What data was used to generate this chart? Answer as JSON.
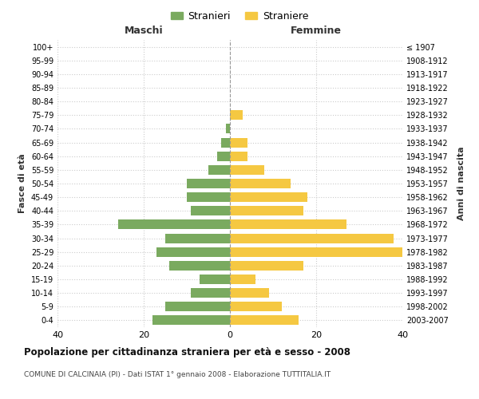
{
  "age_groups": [
    "100+",
    "95-99",
    "90-94",
    "85-89",
    "80-84",
    "75-79",
    "70-74",
    "65-69",
    "60-64",
    "55-59",
    "50-54",
    "45-49",
    "40-44",
    "35-39",
    "30-34",
    "25-29",
    "20-24",
    "15-19",
    "10-14",
    "5-9",
    "0-4"
  ],
  "birth_years": [
    "≤ 1907",
    "1908-1912",
    "1913-1917",
    "1918-1922",
    "1923-1927",
    "1928-1932",
    "1933-1937",
    "1938-1942",
    "1943-1947",
    "1948-1952",
    "1953-1957",
    "1958-1962",
    "1963-1967",
    "1968-1972",
    "1973-1977",
    "1978-1982",
    "1983-1987",
    "1988-1992",
    "1993-1997",
    "1998-2002",
    "2003-2007"
  ],
  "maschi": [
    0,
    0,
    0,
    0,
    0,
    0,
    1,
    2,
    3,
    5,
    10,
    10,
    9,
    26,
    15,
    17,
    14,
    7,
    9,
    15,
    18
  ],
  "femmine": [
    0,
    0,
    0,
    0,
    0,
    3,
    0,
    4,
    4,
    8,
    14,
    18,
    17,
    27,
    38,
    40,
    17,
    6,
    9,
    12,
    16
  ],
  "color_maschi": "#7aaa5f",
  "color_femmine": "#f5c842",
  "title": "Popolazione per cittadinanza straniera per età e sesso - 2008",
  "subtitle": "COMUNE DI CALCINAIA (PI) - Dati ISTAT 1° gennaio 2008 - Elaborazione TUTTITALIA.IT",
  "xlabel_left": "Maschi",
  "xlabel_right": "Femmine",
  "ylabel_left": "Fasce di età",
  "ylabel_right": "Anni di nascita",
  "legend_maschi": "Stranieri",
  "legend_femmine": "Straniere",
  "xlim": 40,
  "background_color": "#ffffff",
  "grid_color": "#cccccc"
}
